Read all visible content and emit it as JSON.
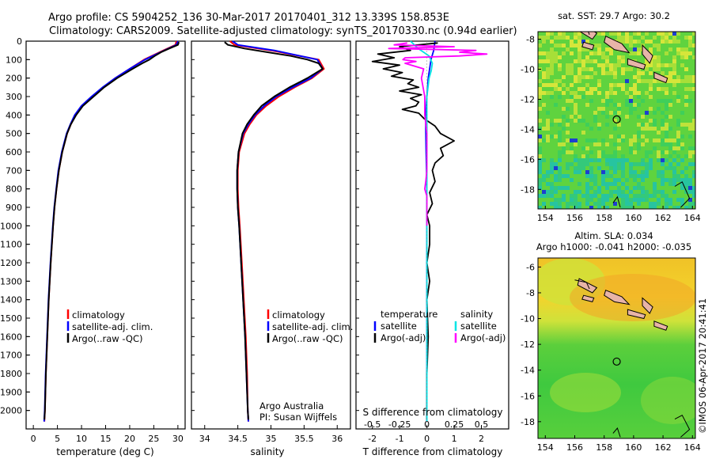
{
  "header": {
    "title_line1": "Argo profile: CS 5904252_136 30-Mar-2017 20170401_312 13.339S 158.853E",
    "title_line2": "Climatology: CARS2009. Satellite-adjusted climatology: synTS_20170330.nc (0.94d earlier)"
  },
  "colors": {
    "climatology": "#ff0000",
    "satellite_adj": "#0000ff",
    "argo": "#000000",
    "sal_satellite": "#00e5e5",
    "sal_argo": "#ff00ff",
    "land": "#e8b4a8"
  },
  "panel_temperature": {
    "xlabel": "temperature (deg C)",
    "legend": [
      "climatology",
      "satellite-adj. clim.",
      "Argo(..raw -QC)"
    ]
  },
  "panel_salinity": {
    "xlabel": "salinity",
    "legend": [
      "climatology",
      "satellite-adj. clim.",
      "Argo(..raw -QC)"
    ],
    "credit1": "Argo Australia",
    "credit2": "PI: Susan Wijffels"
  },
  "panel_difference": {
    "xlabel_bottom": "T difference from climatology",
    "xlabel_top": "S difference from climatology",
    "legend_temp_title": "temperature",
    "legend_temp_sat": "satellite",
    "legend_temp_argo": "Argo(-adj)",
    "legend_sal_title": "salinity",
    "legend_sal_sat": "satellite",
    "legend_sal_argo": "Argo(-adj)"
  },
  "map_sst": {
    "title": "sat. SST: 29.7  Argo: 30.2",
    "xticks": [
      "154",
      "156",
      "158",
      "160",
      "162",
      "164"
    ],
    "yticks": [
      "-8",
      "-10",
      "-12",
      "-14",
      "-16",
      "-18"
    ],
    "float_lon": 158.853,
    "float_lat": -13.339
  },
  "map_sla": {
    "title1": "Altim. SLA: 0.034",
    "title2": "Argo h1000: -0.041 h2000: -0.035",
    "xticks": [
      "154",
      "156",
      "158",
      "160",
      "162",
      "164"
    ],
    "yticks": [
      "-6",
      "-8",
      "-10",
      "-12",
      "-14",
      "-16",
      "-18"
    ],
    "float_lon": 158.853,
    "float_lat": -13.339
  },
  "footer": {
    "stamp": "©IMOS 06-Apr-2017 20:41:41"
  },
  "chart_data": [
    {
      "type": "line",
      "id": "temperature",
      "ylabel": "",
      "xlabel": "temperature (deg C)",
      "xlim": [
        -1.5,
        31.5
      ],
      "ylim": [
        0,
        2100
      ],
      "y_inverted": true,
      "xticks": [
        0,
        5,
        10,
        15,
        20,
        25,
        30
      ],
      "xtick_labels": [
        "0",
        "5",
        "10",
        "15",
        "20",
        "25",
        "30"
      ],
      "yticks": [
        0,
        100,
        200,
        300,
        400,
        500,
        600,
        700,
        800,
        900,
        1000,
        1100,
        1200,
        1300,
        1400,
        1500,
        1600,
        1700,
        1800,
        1900,
        2000
      ],
      "ytick_labels": [
        "0",
        "100",
        "200",
        "300",
        "400",
        "500",
        "600",
        "700",
        "800",
        "900",
        "1000",
        "1100",
        "1200",
        "1300",
        "1400",
        "1500",
        "1600",
        "1700",
        "1800",
        "1900",
        "2000"
      ],
      "series": [
        {
          "name": "climatology",
          "color": "#ff0000",
          "depth": [
            0,
            20,
            50,
            100,
            150,
            200,
            250,
            300,
            350,
            400,
            450,
            500,
            600,
            700,
            800,
            900,
            1000,
            1200,
            1400,
            1600,
            1800,
            2000,
            2060
          ],
          "values": [
            29.7,
            29.5,
            27,
            23,
            20,
            17,
            14.5,
            12.3,
            10.2,
            8.8,
            7.8,
            7.0,
            6.0,
            5.3,
            4.8,
            4.4,
            4.1,
            3.6,
            3.2,
            2.9,
            2.6,
            2.4,
            2.3
          ]
        },
        {
          "name": "satellite-adj. clim.",
          "color": "#0000ff",
          "depth": [
            0,
            20,
            50,
            100,
            150,
            200,
            250,
            300,
            350,
            400,
            450,
            500,
            600,
            700,
            800,
            900,
            1000,
            1200,
            1400,
            1600,
            1800,
            2000,
            2060
          ],
          "values": [
            30.0,
            29.7,
            27.2,
            23.2,
            20.0,
            17.0,
            14.4,
            12.1,
            10.0,
            8.6,
            7.7,
            6.9,
            5.9,
            5.2,
            4.75,
            4.35,
            4.05,
            3.55,
            3.15,
            2.85,
            2.55,
            2.35,
            2.25
          ]
        },
        {
          "name": "Argo(..raw -QC)",
          "color": "#000000",
          "depth": [
            5,
            20,
            40,
            60,
            80,
            100,
            120,
            150,
            200,
            250,
            300,
            350,
            400,
            450,
            500,
            600,
            700,
            800,
            900,
            1000,
            1200,
            1400,
            1600,
            1800,
            2000,
            2050
          ],
          "values": [
            30.2,
            30.0,
            28.2,
            26.5,
            25.2,
            24.1,
            22.6,
            20.6,
            17.4,
            14.7,
            12.5,
            10.3,
            8.9,
            7.8,
            7.0,
            6.0,
            5.3,
            4.8,
            4.4,
            4.1,
            3.6,
            3.2,
            2.9,
            2.6,
            2.4,
            2.3
          ]
        }
      ]
    },
    {
      "type": "line",
      "id": "salinity",
      "xlabel": "salinity",
      "xlim": [
        33.8,
        36.2
      ],
      "ylim": [
        0,
        2100
      ],
      "y_inverted": true,
      "xticks": [
        34,
        34.5,
        35,
        35.5,
        36
      ],
      "xtick_labels": [
        "34",
        "34.5",
        "35",
        "35.5",
        "36"
      ],
      "series": [
        {
          "name": "climatology",
          "color": "#ff0000",
          "depth": [
            0,
            20,
            50,
            100,
            150,
            200,
            250,
            300,
            350,
            400,
            450,
            500,
            600,
            700,
            800,
            900,
            1000,
            1200,
            1400,
            1600,
            1800,
            2000,
            2060
          ],
          "values": [
            34.38,
            34.45,
            35.0,
            35.72,
            35.8,
            35.62,
            35.36,
            35.12,
            34.93,
            34.78,
            34.68,
            34.6,
            34.52,
            34.5,
            34.5,
            34.51,
            34.53,
            34.56,
            34.59,
            34.62,
            34.64,
            34.65,
            34.66
          ]
        },
        {
          "name": "satellite-adj. clim.",
          "color": "#0000ff",
          "depth": [
            0,
            20,
            50,
            100,
            150,
            200,
            250,
            300,
            350,
            400,
            450,
            500,
            600,
            700,
            800,
            900,
            1000,
            1200,
            1400,
            1600,
            1800,
            2000,
            2060
          ],
          "values": [
            34.42,
            34.5,
            35.05,
            35.7,
            35.78,
            35.6,
            35.33,
            35.08,
            34.9,
            34.76,
            34.66,
            34.58,
            34.51,
            34.49,
            34.49,
            34.5,
            34.52,
            34.55,
            34.58,
            34.61,
            34.63,
            34.65,
            34.66
          ]
        },
        {
          "name": "Argo(..raw -QC)",
          "color": "#000000",
          "depth": [
            5,
            20,
            40,
            60,
            80,
            100,
            120,
            150,
            200,
            250,
            300,
            350,
            400,
            450,
            500,
            600,
            700,
            800,
            900,
            1000,
            1200,
            1400,
            1600,
            1800,
            2000,
            2050
          ],
          "values": [
            34.3,
            34.35,
            34.6,
            34.95,
            35.3,
            35.55,
            35.72,
            35.78,
            35.55,
            35.28,
            35.05,
            34.86,
            34.74,
            34.64,
            34.57,
            34.51,
            34.49,
            34.49,
            34.5,
            34.52,
            34.55,
            34.58,
            34.61,
            34.63,
            34.65,
            34.66
          ]
        }
      ]
    },
    {
      "type": "line",
      "id": "difference",
      "xlabel": "T difference from climatology",
      "xlabel_top": "S difference from climatology",
      "xlim": [
        -2.6,
        3.0
      ],
      "ylim": [
        0,
        2100
      ],
      "y_inverted": true,
      "xticks": [
        -2,
        -1,
        0,
        1,
        2
      ],
      "xtick_labels": [
        "-2",
        "-1",
        "0",
        "1",
        "2"
      ],
      "xticks_top": [
        -0.5,
        -0.25,
        0,
        0.25,
        0.5
      ],
      "xtick_labels_top": [
        "-0.5",
        "-0.25",
        "0",
        "0.25",
        "0.5"
      ],
      "series": [
        {
          "name": "temperature satellite",
          "color": "#0000ff",
          "depth": [
            0,
            50,
            100,
            200,
            300,
            400,
            600,
            800,
            1000,
            1500,
            2060
          ],
          "values": [
            0.3,
            0.25,
            0.15,
            0.05,
            0.0,
            -0.05,
            -0.03,
            0.0,
            0.0,
            0.0,
            0.0
          ]
        },
        {
          "name": "temperature Argo(-adj)",
          "color": "#000000",
          "depth": [
            10,
            30,
            50,
            70,
            90,
            110,
            130,
            150,
            170,
            190,
            210,
            230,
            250,
            270,
            290,
            310,
            330,
            350,
            370,
            390,
            420,
            460,
            500,
            540,
            580,
            620,
            660,
            700,
            760,
            820,
            880,
            940,
            1000,
            1100,
            1200,
            1300,
            1400,
            1600,
            1800,
            2000,
            2050
          ],
          "values": [
            0.4,
            -1.0,
            -0.6,
            -1.8,
            -1.2,
            -2.0,
            -1.0,
            -1.6,
            -0.9,
            -1.3,
            -0.5,
            -0.7,
            -0.3,
            -1.0,
            -0.2,
            -0.6,
            -0.3,
            -0.4,
            -0.9,
            -0.3,
            -0.1,
            0.3,
            0.5,
            1.0,
            0.5,
            0.6,
            0.3,
            0.2,
            0.3,
            0.1,
            0.2,
            0.0,
            0.1,
            0.1,
            0.0,
            0.1,
            0.0,
            0.05,
            0.0,
            0.0,
            0.0
          ]
        },
        {
          "name": "salinity satellite",
          "color": "#00e5e5",
          "depth": [
            0,
            40,
            80,
            120,
            160,
            200,
            300,
            400,
            600,
            800,
            1000,
            1500,
            2060
          ],
          "values": [
            -0.15,
            -0.08,
            0.02,
            0.05,
            0.04,
            0.02,
            0.0,
            0.0,
            0.0,
            0.0,
            0.0,
            0.0,
            0.0
          ]
        },
        {
          "name": "salinity Argo(-adj)",
          "color": "#ff00ff",
          "depth": [
            10,
            20,
            30,
            40,
            50,
            60,
            70,
            80,
            90,
            100,
            110,
            120,
            150,
            200,
            300,
            400,
            500,
            600,
            700,
            760,
            800,
            840,
            900,
            1000
          ],
          "values": [
            -0.18,
            -0.3,
            0.25,
            -0.35,
            0.45,
            0.3,
            0.55,
            0.3,
            -0.2,
            -0.22,
            -0.1,
            -0.2,
            -0.03,
            -0.05,
            -0.02,
            -0.02,
            0.0,
            0.0,
            0.0,
            -0.01,
            -0.02,
            0.0,
            0.0,
            0.0
          ]
        }
      ]
    }
  ]
}
